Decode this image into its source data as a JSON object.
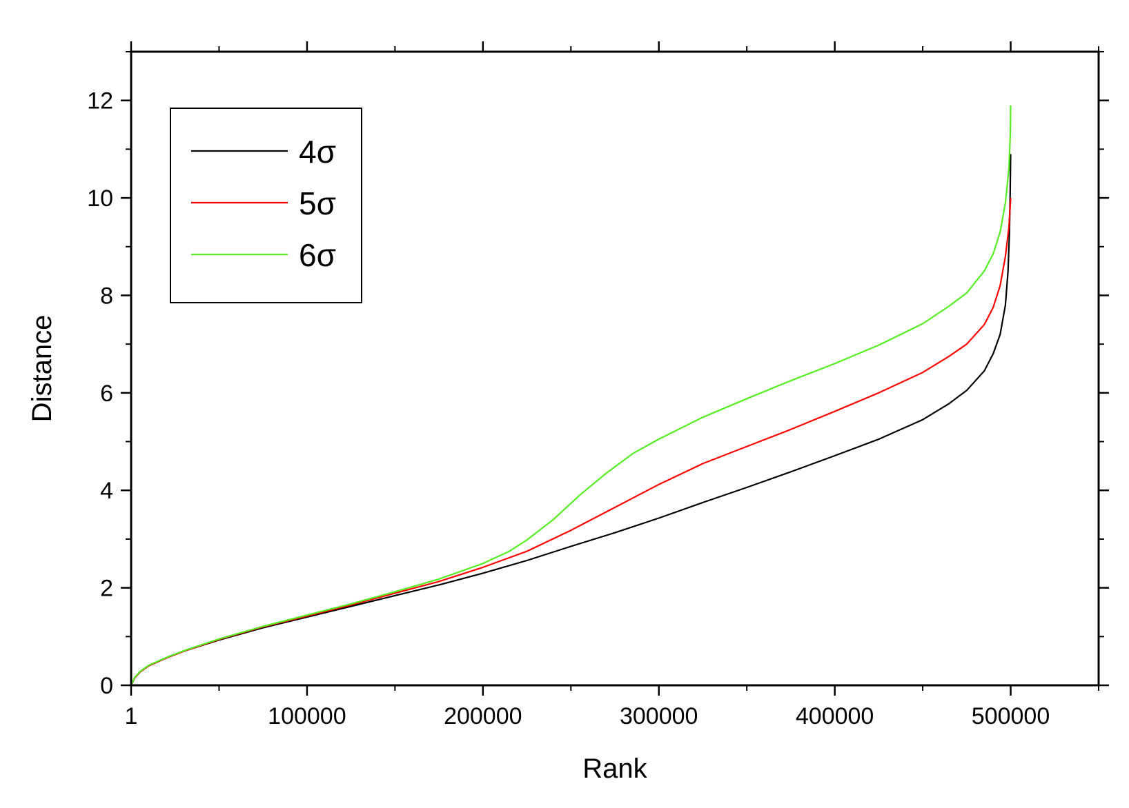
{
  "chart_data": {
    "type": "line",
    "title": "",
    "xlabel": "Rank",
    "ylabel": "Distance",
    "xlim": [
      0,
      550000
    ],
    "ylim": [
      0,
      13
    ],
    "x_ticks": [
      {
        "value": 1,
        "label": "1"
      },
      {
        "value": 100000,
        "label": "100000"
      },
      {
        "value": 200000,
        "label": "200000"
      },
      {
        "value": 300000,
        "label": "300000"
      },
      {
        "value": 400000,
        "label": "400000"
      },
      {
        "value": 500000,
        "label": "500000"
      }
    ],
    "y_ticks": [
      {
        "value": 0,
        "label": "0"
      },
      {
        "value": 2,
        "label": "2"
      },
      {
        "value": 4,
        "label": "4"
      },
      {
        "value": 6,
        "label": "6"
      },
      {
        "value": 8,
        "label": "8"
      },
      {
        "value": 10,
        "label": "10"
      },
      {
        "value": 12,
        "label": "12"
      }
    ],
    "grid": false,
    "legend_position": "top-left",
    "series": [
      {
        "name": "4σ",
        "color": "#000000",
        "points": [
          [
            1,
            0
          ],
          [
            2000,
            0.15
          ],
          [
            5000,
            0.27
          ],
          [
            10000,
            0.4
          ],
          [
            20000,
            0.56
          ],
          [
            30000,
            0.7
          ],
          [
            50000,
            0.93
          ],
          [
            75000,
            1.18
          ],
          [
            100000,
            1.4
          ],
          [
            125000,
            1.62
          ],
          [
            150000,
            1.84
          ],
          [
            175000,
            2.06
          ],
          [
            200000,
            2.3
          ],
          [
            225000,
            2.56
          ],
          [
            250000,
            2.85
          ],
          [
            275000,
            3.13
          ],
          [
            300000,
            3.43
          ],
          [
            325000,
            3.75
          ],
          [
            350000,
            4.06
          ],
          [
            375000,
            4.38
          ],
          [
            400000,
            4.71
          ],
          [
            425000,
            5.05
          ],
          [
            450000,
            5.45
          ],
          [
            465000,
            5.78
          ],
          [
            475000,
            6.05
          ],
          [
            485000,
            6.45
          ],
          [
            490000,
            6.8
          ],
          [
            494000,
            7.2
          ],
          [
            497000,
            7.8
          ],
          [
            498500,
            8.5
          ],
          [
            499300,
            9.3
          ],
          [
            499700,
            10.1
          ],
          [
            500000,
            10.9
          ]
        ]
      },
      {
        "name": "5σ",
        "color": "#ff0000",
        "points": [
          [
            1,
            0
          ],
          [
            2000,
            0.15
          ],
          [
            5000,
            0.27
          ],
          [
            10000,
            0.4
          ],
          [
            20000,
            0.56
          ],
          [
            30000,
            0.7
          ],
          [
            50000,
            0.94
          ],
          [
            75000,
            1.2
          ],
          [
            100000,
            1.42
          ],
          [
            125000,
            1.65
          ],
          [
            150000,
            1.89
          ],
          [
            175000,
            2.13
          ],
          [
            200000,
            2.42
          ],
          [
            225000,
            2.75
          ],
          [
            250000,
            3.18
          ],
          [
            275000,
            3.65
          ],
          [
            300000,
            4.12
          ],
          [
            325000,
            4.55
          ],
          [
            350000,
            4.9
          ],
          [
            375000,
            5.25
          ],
          [
            400000,
            5.62
          ],
          [
            425000,
            6.0
          ],
          [
            450000,
            6.42
          ],
          [
            465000,
            6.75
          ],
          [
            475000,
            7.0
          ],
          [
            485000,
            7.4
          ],
          [
            490000,
            7.75
          ],
          [
            494000,
            8.2
          ],
          [
            497000,
            8.8
          ],
          [
            499000,
            9.4
          ],
          [
            500000,
            10.0
          ]
        ]
      },
      {
        "name": "6σ",
        "color": "#55ee22",
        "points": [
          [
            1,
            0
          ],
          [
            2000,
            0.16
          ],
          [
            5000,
            0.28
          ],
          [
            10000,
            0.41
          ],
          [
            20000,
            0.57
          ],
          [
            30000,
            0.71
          ],
          [
            50000,
            0.95
          ],
          [
            75000,
            1.21
          ],
          [
            100000,
            1.44
          ],
          [
            125000,
            1.67
          ],
          [
            150000,
            1.92
          ],
          [
            175000,
            2.18
          ],
          [
            200000,
            2.5
          ],
          [
            215000,
            2.75
          ],
          [
            225000,
            2.98
          ],
          [
            240000,
            3.4
          ],
          [
            255000,
            3.9
          ],
          [
            270000,
            4.35
          ],
          [
            285000,
            4.75
          ],
          [
            300000,
            5.05
          ],
          [
            325000,
            5.5
          ],
          [
            350000,
            5.88
          ],
          [
            375000,
            6.25
          ],
          [
            400000,
            6.6
          ],
          [
            425000,
            6.98
          ],
          [
            450000,
            7.42
          ],
          [
            465000,
            7.78
          ],
          [
            475000,
            8.05
          ],
          [
            485000,
            8.5
          ],
          [
            490000,
            8.85
          ],
          [
            494000,
            9.3
          ],
          [
            497000,
            9.9
          ],
          [
            499000,
            10.6
          ],
          [
            499800,
            11.3
          ],
          [
            500000,
            11.9
          ]
        ]
      }
    ]
  }
}
